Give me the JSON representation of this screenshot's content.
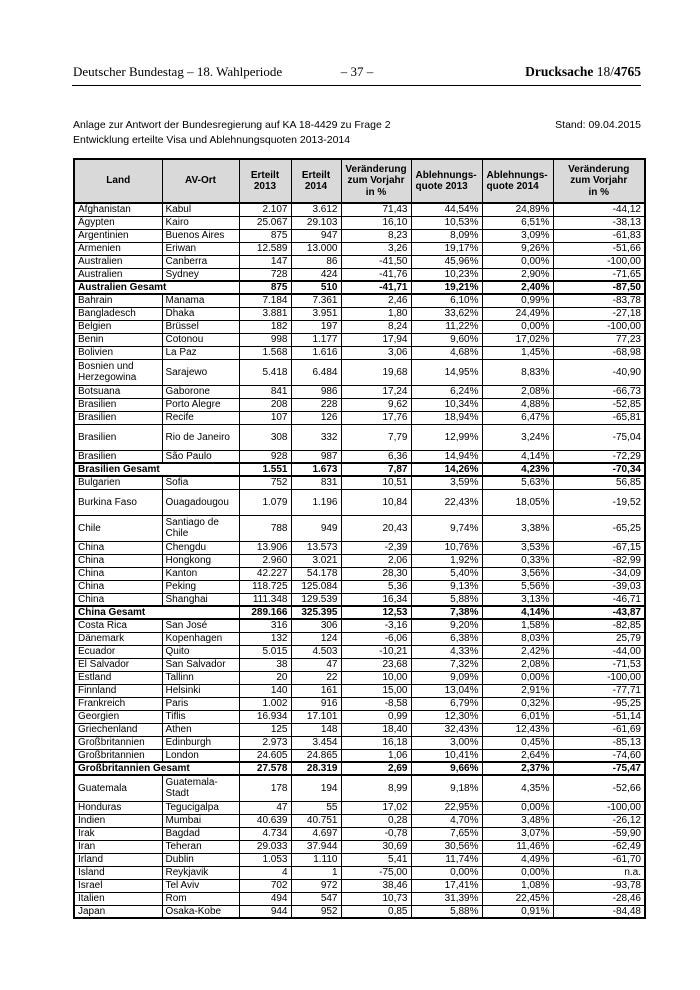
{
  "page_header": {
    "left": "Deutscher Bundestag – 18. Wahlperiode",
    "center": "– 37 –",
    "right_word": "Drucksache ",
    "right_prefix": "18/",
    "right_number": "4765"
  },
  "annotation": {
    "line1": "Anlage zur Antwort der Bundesregierung auf KA 18-4429 zu Frage 2",
    "line2": "Entwicklung erteilte Visa und Ablehnungsquoten 2013-2014",
    "stand": "Stand: 09.04.2015"
  },
  "table": {
    "columns": [
      "Land",
      "AV-Ort",
      "Erteilt\n2013",
      "Erteilt\n2014",
      "Veränderung\nzum Vorjahr\nin %",
      "Ablehnungs-\nquote 2013",
      "Ablehnungs-\nquote 2014",
      "Veränderung\nzum Vorjahr\nin %"
    ],
    "rows": [
      {
        "cells": [
          "Afghanistan",
          "Kabul",
          "2.107",
          "3.612",
          "71,43",
          "44,54%",
          "24,89%",
          "-44,12"
        ],
        "bold": false,
        "tall": false
      },
      {
        "cells": [
          "Ägypten",
          "Kairo",
          "25.067",
          "29.103",
          "16,10",
          "10,53%",
          "6,51%",
          "-38,13"
        ],
        "bold": false,
        "tall": false
      },
      {
        "cells": [
          "Argentinien",
          "Buenos Aires",
          "875",
          "947",
          "8,23",
          "8,09%",
          "3,09%",
          "-61,83"
        ],
        "bold": false,
        "tall": false
      },
      {
        "cells": [
          "Armenien",
          "Eriwan",
          "12.589",
          "13.000",
          "3,26",
          "19,17%",
          "9,26%",
          "-51,66"
        ],
        "bold": false,
        "tall": false
      },
      {
        "cells": [
          "Australien",
          "Canberra",
          "147",
          "86",
          "-41,50",
          "45,96%",
          "0,00%",
          "-100,00"
        ],
        "bold": false,
        "tall": false
      },
      {
        "cells": [
          "Australien",
          "Sydney",
          "728",
          "424",
          "-41,76",
          "10,23%",
          "2,90%",
          "-71,65"
        ],
        "bold": false,
        "tall": false
      },
      {
        "cells": [
          "Australien Gesamt",
          "",
          "875",
          "510",
          "-41,71",
          "19,21%",
          "2,40%",
          "-87,50"
        ],
        "bold": true,
        "tall": false
      },
      {
        "cells": [
          "Bahrain",
          "Manama",
          "7.184",
          "7.361",
          "2,46",
          "6,10%",
          "0,99%",
          "-83,78"
        ],
        "bold": false,
        "tall": false
      },
      {
        "cells": [
          "Bangladesch",
          "Dhaka",
          "3.881",
          "3.951",
          "1,80",
          "33,62%",
          "24,49%",
          "-27,18"
        ],
        "bold": false,
        "tall": false
      },
      {
        "cells": [
          "Belgien",
          "Brüssel",
          "182",
          "197",
          "8,24",
          "11,22%",
          "0,00%",
          "-100,00"
        ],
        "bold": false,
        "tall": false
      },
      {
        "cells": [
          "Benin",
          "Cotonou",
          "998",
          "1.177",
          "17,94",
          "9,60%",
          "17,02%",
          "77,23"
        ],
        "bold": false,
        "tall": false
      },
      {
        "cells": [
          "Bolivien",
          "La Paz",
          "1.568",
          "1.616",
          "3,06",
          "4,68%",
          "1,45%",
          "-68,98"
        ],
        "bold": false,
        "tall": false
      },
      {
        "cells": [
          "Bosnien und Herzegowina",
          "Sarajewo",
          "5.418",
          "6.484",
          "19,68",
          "14,95%",
          "8,83%",
          "-40,90"
        ],
        "bold": false,
        "tall": true
      },
      {
        "cells": [
          "Botsuana",
          "Gaborone",
          "841",
          "986",
          "17,24",
          "6,24%",
          "2,08%",
          "-66,73"
        ],
        "bold": false,
        "tall": false
      },
      {
        "cells": [
          "Brasilien",
          "Porto Alegre",
          "208",
          "228",
          "9,62",
          "10,34%",
          "4,88%",
          "-52,85"
        ],
        "bold": false,
        "tall": false
      },
      {
        "cells": [
          "Brasilien",
          "Recife",
          "107",
          "126",
          "17,76",
          "18,94%",
          "6,47%",
          "-65,81"
        ],
        "bold": false,
        "tall": false
      },
      {
        "cells": [
          "Brasilien",
          "Rio de Janeiro",
          "308",
          "332",
          "7,79",
          "12,99%",
          "3,24%",
          "-75,04"
        ],
        "bold": false,
        "tall": true
      },
      {
        "cells": [
          "Brasilien",
          "São Paulo",
          "928",
          "987",
          "6,36",
          "14,94%",
          "4,14%",
          "-72,29"
        ],
        "bold": false,
        "tall": false
      },
      {
        "cells": [
          "Brasilien Gesamt",
          "",
          "1.551",
          "1.673",
          "7,87",
          "14,26%",
          "4,23%",
          "-70,34"
        ],
        "bold": true,
        "tall": false
      },
      {
        "cells": [
          "Bulgarien",
          "Sofia",
          "752",
          "831",
          "10,51",
          "3,59%",
          "5,63%",
          "56,85"
        ],
        "bold": false,
        "tall": false
      },
      {
        "cells": [
          "Burkina Faso",
          "Ouagadougou",
          "1.079",
          "1.196",
          "10,84",
          "22,43%",
          "18,05%",
          "-19,52"
        ],
        "bold": false,
        "tall": true
      },
      {
        "cells": [
          "Chile",
          "Santiago de Chile",
          "788",
          "949",
          "20,43",
          "9,74%",
          "3,38%",
          "-65,25"
        ],
        "bold": false,
        "tall": true
      },
      {
        "cells": [
          "China",
          "Chengdu",
          "13.906",
          "13.573",
          "-2,39",
          "10,76%",
          "3,53%",
          "-67,15"
        ],
        "bold": false,
        "tall": false
      },
      {
        "cells": [
          "China",
          "Hongkong",
          "2.960",
          "3.021",
          "2,06",
          "1,92%",
          "0,33%",
          "-82,99"
        ],
        "bold": false,
        "tall": false
      },
      {
        "cells": [
          "China",
          "Kanton",
          "42.227",
          "54.178",
          "28,30",
          "5,40%",
          "3,56%",
          "-34,09"
        ],
        "bold": false,
        "tall": false
      },
      {
        "cells": [
          "China",
          "Peking",
          "118.725",
          "125.084",
          "5,36",
          "9,13%",
          "5,56%",
          "-39,03"
        ],
        "bold": false,
        "tall": false
      },
      {
        "cells": [
          "China",
          "Shanghai",
          "111.348",
          "129.539",
          "16,34",
          "5,88%",
          "3,13%",
          "-46,71"
        ],
        "bold": false,
        "tall": false
      },
      {
        "cells": [
          "China Gesamt",
          "",
          "289.166",
          "325.395",
          "12,53",
          "7,38%",
          "4,14%",
          "-43,87"
        ],
        "bold": true,
        "tall": false
      },
      {
        "cells": [
          "Costa Rica",
          "San José",
          "316",
          "306",
          "-3,16",
          "9,20%",
          "1,58%",
          "-82,85"
        ],
        "bold": false,
        "tall": false
      },
      {
        "cells": [
          "Dänemark",
          "Kopenhagen",
          "132",
          "124",
          "-6,06",
          "6,38%",
          "8,03%",
          "25,79"
        ],
        "bold": false,
        "tall": false
      },
      {
        "cells": [
          "Ecuador",
          "Quito",
          "5.015",
          "4.503",
          "-10,21",
          "4,33%",
          "2,42%",
          "-44,00"
        ],
        "bold": false,
        "tall": false
      },
      {
        "cells": [
          "El Salvador",
          "San Salvador",
          "38",
          "47",
          "23,68",
          "7,32%",
          "2,08%",
          "-71,53"
        ],
        "bold": false,
        "tall": false
      },
      {
        "cells": [
          "Estland",
          "Tallinn",
          "20",
          "22",
          "10,00",
          "9,09%",
          "0,00%",
          "-100,00"
        ],
        "bold": false,
        "tall": false
      },
      {
        "cells": [
          "Finnland",
          "Helsinki",
          "140",
          "161",
          "15,00",
          "13,04%",
          "2,91%",
          "-77,71"
        ],
        "bold": false,
        "tall": false
      },
      {
        "cells": [
          "Frankreich",
          "Paris",
          "1.002",
          "916",
          "-8,58",
          "6,79%",
          "0,32%",
          "-95,25"
        ],
        "bold": false,
        "tall": false
      },
      {
        "cells": [
          "Georgien",
          "Tiflis",
          "16.934",
          "17.101",
          "0,99",
          "12,30%",
          "6,01%",
          "-51,14"
        ],
        "bold": false,
        "tall": false
      },
      {
        "cells": [
          "Griechenland",
          "Athen",
          "125",
          "148",
          "18,40",
          "32,43%",
          "12,43%",
          "-61,69"
        ],
        "bold": false,
        "tall": false
      },
      {
        "cells": [
          "Großbritannien",
          "Edinburgh",
          "2.973",
          "3.454",
          "16,18",
          "3,00%",
          "0,45%",
          "-85,13"
        ],
        "bold": false,
        "tall": false
      },
      {
        "cells": [
          "Großbritannien",
          "London",
          "24.605",
          "24.865",
          "1,06",
          "10,41%",
          "2,64%",
          "-74,60"
        ],
        "bold": false,
        "tall": false
      },
      {
        "cells": [
          "Großbritannien Gesamt",
          "",
          "27.578",
          "28.319",
          "2,69",
          "9,66%",
          "2,37%",
          "-75,47"
        ],
        "bold": true,
        "tall": false
      },
      {
        "cells": [
          "Guatemala",
          "Guatemala-Stadt",
          "178",
          "194",
          "8,99",
          "9,18%",
          "4,35%",
          "-52,66"
        ],
        "bold": false,
        "tall": true
      },
      {
        "cells": [
          "Honduras",
          "Tegucigalpa",
          "47",
          "55",
          "17,02",
          "22,95%",
          "0,00%",
          "-100,00"
        ],
        "bold": false,
        "tall": false
      },
      {
        "cells": [
          "Indien",
          "Mumbai",
          "40.639",
          "40.751",
          "0,28",
          "4,70%",
          "3,48%",
          "-26,12"
        ],
        "bold": false,
        "tall": false
      },
      {
        "cells": [
          "Irak",
          "Bagdad",
          "4.734",
          "4.697",
          "-0,78",
          "7,65%",
          "3,07%",
          "-59,90"
        ],
        "bold": false,
        "tall": false
      },
      {
        "cells": [
          "Iran",
          "Teheran",
          "29.033",
          "37.944",
          "30,69",
          "30,56%",
          "11,46%",
          "-62,49"
        ],
        "bold": false,
        "tall": false
      },
      {
        "cells": [
          "Irland",
          "Dublin",
          "1.053",
          "1.110",
          "5,41",
          "11,74%",
          "4,49%",
          "-61,70"
        ],
        "bold": false,
        "tall": false
      },
      {
        "cells": [
          "Island",
          "Reykjavik",
          "4",
          "1",
          "-75,00",
          "0,00%",
          "0,00%",
          "n.a."
        ],
        "bold": false,
        "tall": false
      },
      {
        "cells": [
          "Israel",
          "Tel Aviv",
          "702",
          "972",
          "38,46",
          "17,41%",
          "1,08%",
          "-93,78"
        ],
        "bold": false,
        "tall": false
      },
      {
        "cells": [
          "Italien",
          "Rom",
          "494",
          "547",
          "10,73",
          "31,39%",
          "22,45%",
          "-28,46"
        ],
        "bold": false,
        "tall": false
      },
      {
        "cells": [
          "Japan",
          "Osaka-Kobe",
          "944",
          "952",
          "0,85",
          "5,88%",
          "0,91%",
          "-84,48"
        ],
        "bold": false,
        "tall": false
      }
    ]
  }
}
